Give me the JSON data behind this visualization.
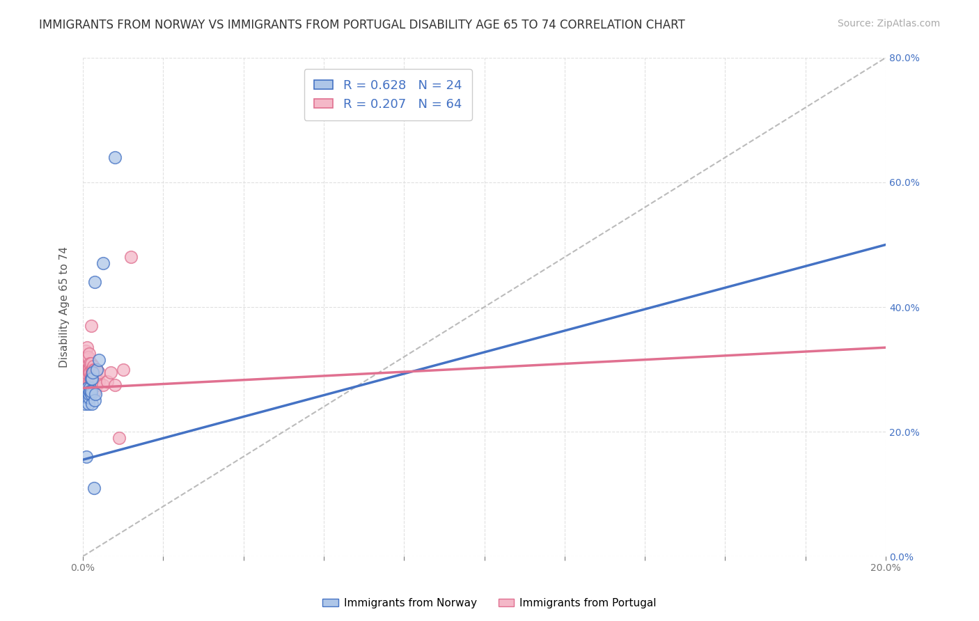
{
  "title": "IMMIGRANTS FROM NORWAY VS IMMIGRANTS FROM PORTUGAL DISABILITY AGE 65 TO 74 CORRELATION CHART",
  "source": "Source: ZipAtlas.com",
  "ylabel": "Disability Age 65 to 74",
  "legend_label1": "Immigrants from Norway",
  "legend_label2": "Immigrants from Portugal",
  "R1": 0.628,
  "N1": 24,
  "R2": 0.207,
  "N2": 64,
  "xlim": [
    0.0,
    0.2
  ],
  "ylim": [
    0.0,
    0.8
  ],
  "norway_color": "#aec6e8",
  "norway_line_color": "#4472c4",
  "portugal_color": "#f4b8c8",
  "portugal_line_color": "#e07090",
  "title_fontsize": 12,
  "source_fontsize": 10,
  "axis_label_fontsize": 11,
  "tick_fontsize": 10,
  "norway_x": [
    0.0005,
    0.0008,
    0.001,
    0.001,
    0.0012,
    0.0013,
    0.0015,
    0.0016,
    0.0017,
    0.0018,
    0.002,
    0.002,
    0.002,
    0.0022,
    0.0022,
    0.0025,
    0.0028,
    0.003,
    0.003,
    0.0032,
    0.0035,
    0.004,
    0.005,
    0.008
  ],
  "norway_y": [
    0.245,
    0.16,
    0.255,
    0.265,
    0.27,
    0.245,
    0.255,
    0.26,
    0.27,
    0.265,
    0.26,
    0.285,
    0.265,
    0.245,
    0.285,
    0.295,
    0.11,
    0.44,
    0.25,
    0.26,
    0.3,
    0.315,
    0.47,
    0.64
  ],
  "portugal_x": [
    0.0003,
    0.0004,
    0.0005,
    0.0005,
    0.0006,
    0.0007,
    0.0007,
    0.0008,
    0.0008,
    0.0009,
    0.001,
    0.001,
    0.001,
    0.001,
    0.001,
    0.0011,
    0.0012,
    0.0012,
    0.0013,
    0.0013,
    0.0013,
    0.0014,
    0.0015,
    0.0015,
    0.0015,
    0.0016,
    0.0016,
    0.0017,
    0.0017,
    0.0018,
    0.0018,
    0.0019,
    0.002,
    0.002,
    0.002,
    0.002,
    0.0021,
    0.0022,
    0.0022,
    0.0023,
    0.0023,
    0.0025,
    0.0025,
    0.0026,
    0.0026,
    0.0027,
    0.0028,
    0.003,
    0.003,
    0.003,
    0.003,
    0.0032,
    0.0033,
    0.0035,
    0.0035,
    0.004,
    0.004,
    0.005,
    0.006,
    0.007,
    0.008,
    0.009,
    0.01,
    0.012
  ],
  "portugal_y": [
    0.275,
    0.3,
    0.29,
    0.31,
    0.285,
    0.3,
    0.33,
    0.265,
    0.295,
    0.31,
    0.27,
    0.28,
    0.3,
    0.32,
    0.335,
    0.265,
    0.285,
    0.3,
    0.275,
    0.3,
    0.32,
    0.29,
    0.27,
    0.3,
    0.325,
    0.28,
    0.295,
    0.27,
    0.295,
    0.275,
    0.31,
    0.285,
    0.27,
    0.29,
    0.31,
    0.37,
    0.265,
    0.275,
    0.3,
    0.275,
    0.295,
    0.275,
    0.3,
    0.285,
    0.305,
    0.275,
    0.3,
    0.275,
    0.295,
    0.265,
    0.3,
    0.28,
    0.295,
    0.275,
    0.3,
    0.28,
    0.295,
    0.275,
    0.28,
    0.295,
    0.275,
    0.19,
    0.3,
    0.48
  ],
  "norway_line_x0": 0.0,
  "norway_line_y0": 0.155,
  "norway_line_x1": 0.2,
  "norway_line_y1": 0.5,
  "portugal_line_x0": 0.0,
  "portugal_line_y0": 0.27,
  "portugal_line_x1": 0.2,
  "portugal_line_y1": 0.335,
  "background_color": "#ffffff",
  "grid_color": "#dddddd"
}
